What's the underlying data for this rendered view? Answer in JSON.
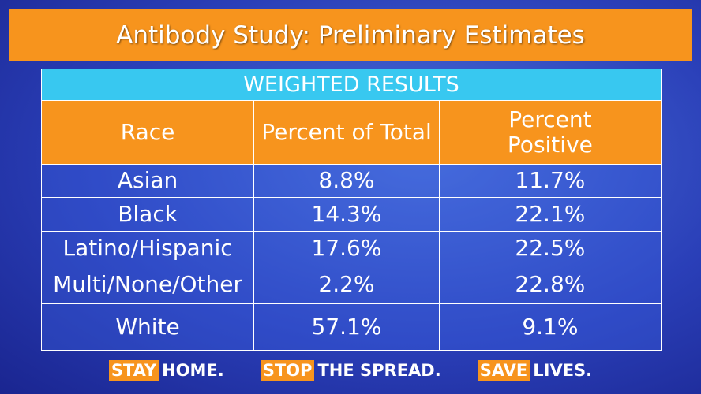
{
  "header": {
    "title": "Antibody Study: Preliminary Estimates"
  },
  "table": {
    "caption": "WEIGHTED RESULTS",
    "columns": [
      "Race",
      "Percent of Total",
      "Percent Positive"
    ],
    "rows": [
      [
        "Asian",
        "8.8%",
        "11.7%"
      ],
      [
        "Black",
        "14.3%",
        "22.1%"
      ],
      [
        "Latino/Hispanic",
        "17.6%",
        "22.5%"
      ],
      [
        "Multi/None/Other",
        "2.2%",
        "22.8%"
      ],
      [
        "White",
        "57.1%",
        "9.1%"
      ]
    ]
  },
  "footer": [
    {
      "highlight": "STAY",
      "text": "HOME."
    },
    {
      "highlight": "STOP",
      "text": "THE SPREAD."
    },
    {
      "highlight": "SAVE",
      "text": "LIVES."
    }
  ]
}
